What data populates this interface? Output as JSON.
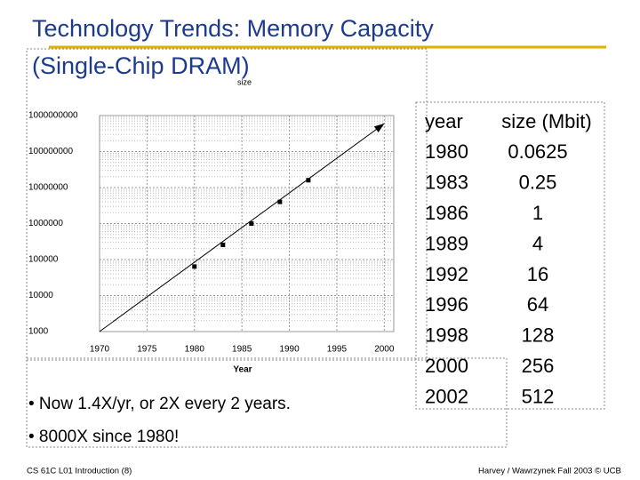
{
  "title": [
    "Technology Trends: Memory Capacity",
    "(Single-Chip DRAM)"
  ],
  "chart_data": {
    "type": "scatter",
    "ylabel": "size",
    "xlabel": "Year",
    "x": [
      1980,
      1983,
      1986,
      1989,
      1992
    ],
    "values": [
      64000,
      256000,
      1000000,
      4000000,
      16000000
    ],
    "color": "#000000",
    "trend": {
      "x": [
        1970,
        2000
      ],
      "values": [
        1000,
        600000000
      ]
    },
    "xlim": [
      1970,
      2001
    ],
    "xticks": [
      1970,
      1975,
      1980,
      1985,
      1990,
      1995,
      2000
    ],
    "ylim": [
      1000,
      1000000000
    ],
    "yticks": [
      1000,
      10000,
      100000,
      1000000,
      10000000,
      100000000,
      1000000000
    ],
    "log_y": true,
    "grid": true
  },
  "table": {
    "header": [
      "year",
      "size (Mbit)"
    ],
    "rows": [
      [
        1980,
        0.0625
      ],
      [
        1983,
        0.25
      ],
      [
        1986,
        1
      ],
      [
        1989,
        4
      ],
      [
        1992,
        16
      ],
      [
        1996,
        64
      ],
      [
        1998,
        128
      ],
      [
        2000,
        256
      ],
      [
        2002,
        512
      ]
    ]
  },
  "bullets": [
    "• Now 1.4X/yr, or 2X every 2 years.",
    "• 8000X since 1980!"
  ],
  "footer": {
    "left": "CS 61C L01 Introduction (8)",
    "right": "Harvey / Wawrzynek Fall 2003 © UCB"
  }
}
